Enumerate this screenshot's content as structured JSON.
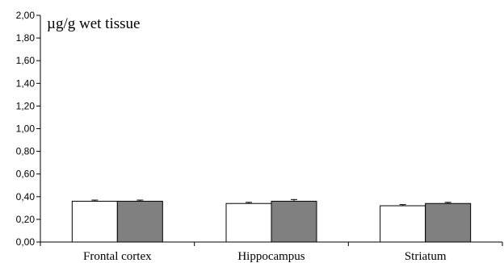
{
  "chart_data": {
    "type": "bar",
    "title": "",
    "xlabel": "",
    "ylabel": "µg/g wet tissue",
    "ylim": [
      0,
      2.0
    ],
    "yticks": [
      "0,00",
      "0,20",
      "0,40",
      "0,60",
      "0,80",
      "1,00",
      "1,20",
      "1,40",
      "1,60",
      "1,80",
      "2,00"
    ],
    "categories": [
      "Frontal cortex",
      "Hippocampus",
      "Striatum"
    ],
    "series": [
      {
        "values": [
          0.36,
          0.34,
          0.32
        ],
        "errors": [
          0.01,
          0.01,
          0.01
        ],
        "color": "#ffffff"
      },
      {
        "values": [
          0.36,
          0.36,
          0.34
        ],
        "errors": [
          0.01,
          0.015,
          0.01
        ],
        "color": "#808080"
      }
    ],
    "grid": false,
    "legend": "none"
  }
}
